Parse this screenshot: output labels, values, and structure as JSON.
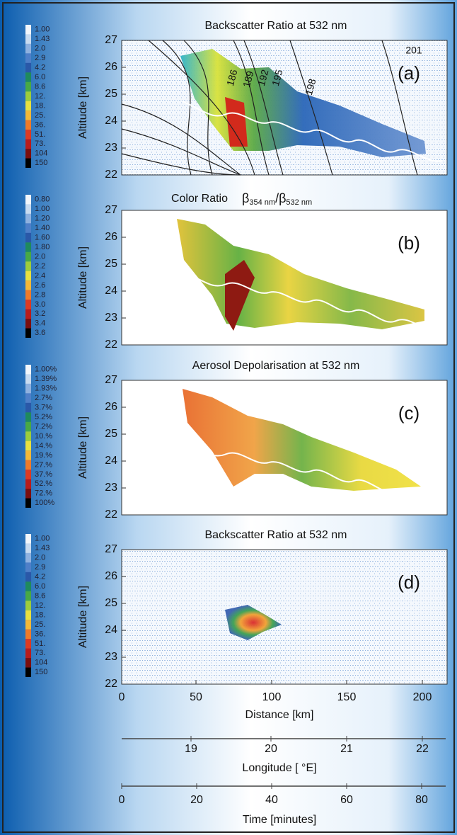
{
  "panels": [
    {
      "title": "Backscatter Ratio at 532 nm",
      "label": "(a)",
      "y_axis_title": "Altitude [km]",
      "y_ticks": [
        "27",
        "26",
        "25",
        "24",
        "23",
        "22"
      ],
      "colorbar": [
        "1.00",
        "1.43",
        "2.0",
        "2.9",
        "4.2",
        "6.0",
        "8.6",
        "12.",
        "18.",
        "25.",
        "36.",
        "51.",
        "73.",
        "104",
        "150"
      ],
      "contour_labels": [
        "186",
        "189",
        "192",
        "195",
        "198",
        "201"
      ]
    },
    {
      "title": "Color Ratio",
      "title_formula": [
        "β",
        "354 nm",
        "/β",
        "532 nm"
      ],
      "label": "(b)",
      "y_axis_title": "Altitude [km]",
      "y_ticks": [
        "27",
        "26",
        "25",
        "24",
        "23",
        "22"
      ],
      "colorbar": [
        "0.80",
        "1.00",
        "1.20",
        "1.40",
        "1.60",
        "1.80",
        "2.0",
        "2.2",
        "2.4",
        "2.6",
        "2.8",
        "3.0",
        "3.2",
        "3.4",
        "3.6"
      ]
    },
    {
      "title": "Aerosol Depolarisation at 532 nm",
      "label": "(c)",
      "y_axis_title": "Altitude [km]",
      "y_ticks": [
        "27",
        "26",
        "25",
        "24",
        "23",
        "22"
      ],
      "colorbar": [
        "1.00%",
        "1.39%",
        "1.93%",
        "2.7%",
        "3.7%",
        "5.2%",
        "7.2%",
        "10.%",
        "14.%",
        "19.%",
        "27.%",
        "37.%",
        "52.%",
        "72.%",
        "100%"
      ]
    },
    {
      "title": "Backscatter Ratio at 532 nm",
      "label": "(d)",
      "y_axis_title": "Altitude [km]",
      "y_ticks": [
        "27",
        "26",
        "25",
        "24",
        "23",
        "22"
      ],
      "colorbar": [
        "1.00",
        "1.43",
        "2.0",
        "2.9",
        "4.2",
        "6.0",
        "8.6",
        "12.",
        "18.",
        "25.",
        "36.",
        "51.",
        "73.",
        "104",
        "150"
      ]
    }
  ],
  "x_axes": {
    "distance": {
      "title": "Distance [km]",
      "ticks": [
        "0",
        "50",
        "100",
        "150",
        "200"
      ]
    },
    "longitude": {
      "title": "Longitude [ °E]",
      "ticks": [
        "19",
        "20",
        "21",
        "22"
      ]
    },
    "time": {
      "title": "Time [minutes]",
      "ticks": [
        "0",
        "20",
        "40",
        "60",
        "80"
      ]
    }
  }
}
